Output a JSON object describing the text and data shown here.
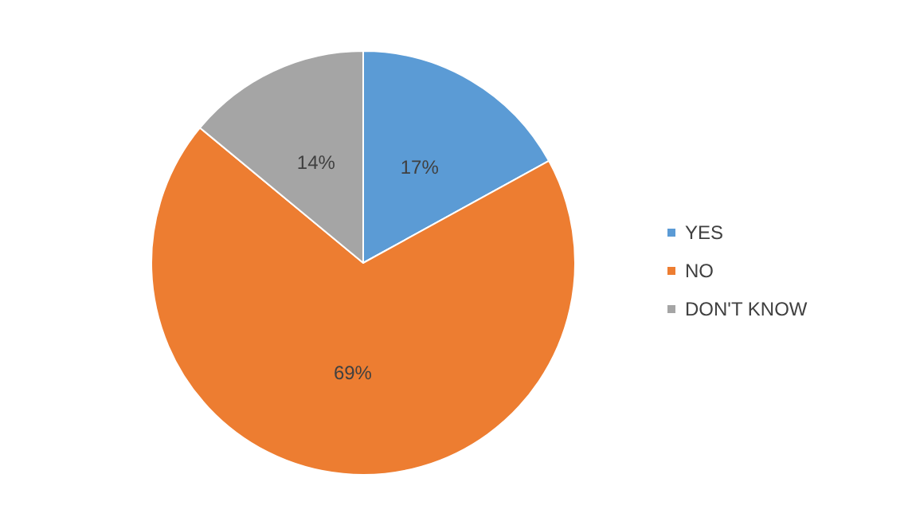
{
  "chart_data": {
    "type": "pie",
    "categories": [
      "YES",
      "NO",
      "DON'T KNOW"
    ],
    "values": [
      17,
      69,
      14
    ],
    "colors": [
      "#5b9bd5",
      "#ed7d31",
      "#a5a5a5"
    ],
    "value_labels": [
      "17%",
      "69%",
      "14%"
    ],
    "legend": "right"
  }
}
